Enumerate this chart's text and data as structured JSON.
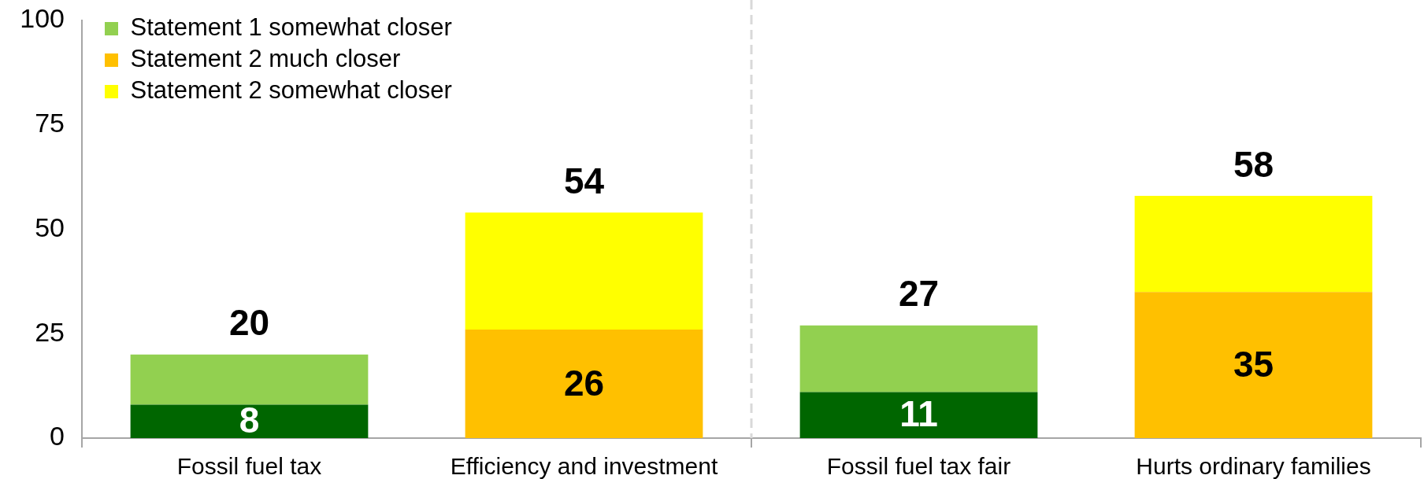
{
  "chart_data": {
    "type": "bar",
    "stacked": true,
    "categories": [
      "Fossil fuel tax",
      "Efficiency and investment",
      "Fossil fuel tax fair",
      "Hurts ordinary families"
    ],
    "series": [
      {
        "color": "#006600",
        "values": [
          8,
          null,
          11,
          null
        ],
        "value_labels": [
          "8",
          null,
          "11",
          null
        ]
      },
      {
        "name": "Statement 1 somewhat closer",
        "color": "#92d050",
        "values": [
          12,
          null,
          16,
          null
        ]
      },
      {
        "name": "Statement 2 much closer",
        "color": "#ffc000",
        "values": [
          null,
          26,
          null,
          35
        ],
        "value_labels": [
          null,
          "26",
          null,
          "35"
        ]
      },
      {
        "name": "Statement 2 somewhat closer",
        "color": "#ffff00",
        "values": [
          null,
          28,
          null,
          23
        ]
      }
    ],
    "totals": [
      "20",
      "54",
      "27",
      "58"
    ],
    "ylim": [
      0,
      100
    ],
    "yticks": [
      0,
      25,
      50,
      75,
      100
    ],
    "grid": false,
    "legend": "top left"
  }
}
